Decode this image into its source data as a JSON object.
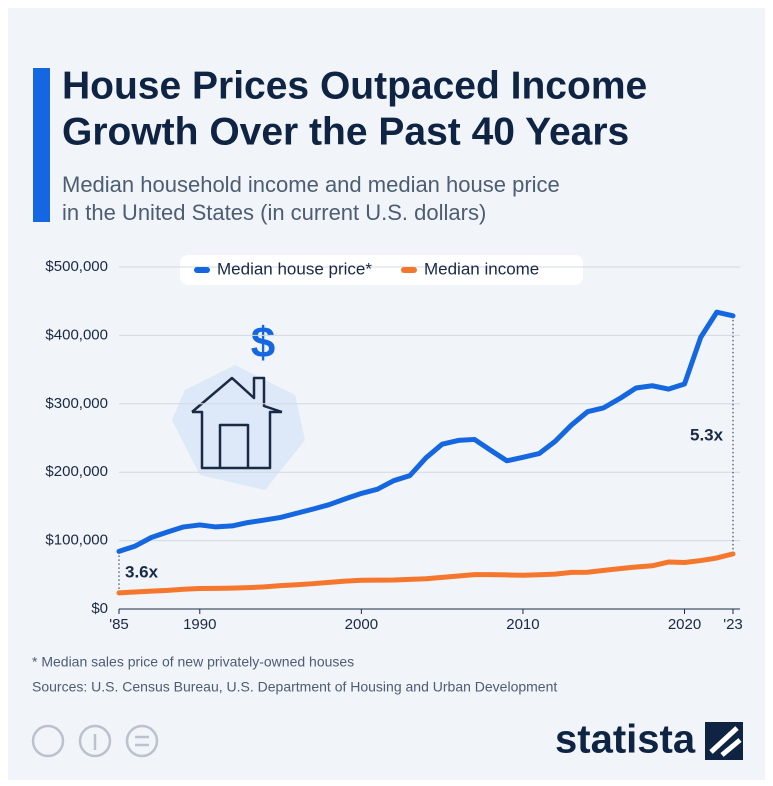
{
  "chart_data": {
    "type": "line",
    "title": [
      "House Prices Outpaced Income",
      "Growth Over the Past 40 Years"
    ],
    "subtitle": [
      "Median household income and median house price",
      "in the United States (in current U.S. dollars)"
    ],
    "x": [
      1985,
      1986,
      1987,
      1988,
      1989,
      1990,
      1991,
      1992,
      1993,
      1994,
      1995,
      1996,
      1997,
      1998,
      1999,
      2000,
      2001,
      2002,
      2003,
      2004,
      2005,
      2006,
      2007,
      2008,
      2009,
      2010,
      2011,
      2012,
      2013,
      2014,
      2015,
      2016,
      2017,
      2018,
      2019,
      2020,
      2021,
      2022,
      2023
    ],
    "series": [
      {
        "name": "Median house price*",
        "color": "#1467e0",
        "values": [
          84300,
          92000,
          104500,
          112500,
          120000,
          122900,
          120000,
          121500,
          126500,
          130000,
          133900,
          140000,
          146000,
          152500,
          161000,
          169000,
          175200,
          187600,
          195000,
          221000,
          240900,
          246500,
          247900,
          232100,
          216700,
          221800,
          227200,
          245200,
          268900,
          288500,
          294200,
          307800,
          323100,
          326400,
          321500,
          329000,
          397100,
          434000,
          428600
        ]
      },
      {
        "name": "Median income",
        "color": "#f5772d",
        "values": [
          23600,
          24900,
          26100,
          27200,
          28900,
          29900,
          30100,
          30600,
          31200,
          32300,
          34100,
          35500,
          37000,
          38900,
          40700,
          41990,
          42200,
          42400,
          43300,
          44300,
          46300,
          48200,
          50200,
          50300,
          49800,
          49300,
          50100,
          51000,
          53600,
          53700,
          56500,
          59000,
          61400,
          63200,
          68700,
          68000,
          70800,
          74600,
          80600
        ]
      }
    ],
    "xlim": [
      1985,
      2023
    ],
    "xticks": [
      {
        "value": 1985,
        "label": "'85"
      },
      1990,
      2000,
      2010,
      2020,
      {
        "value": 2023,
        "label": "'23"
      }
    ],
    "ylim": [
      0,
      500000
    ],
    "yticks": [
      {
        "value": 0,
        "label": "$0"
      },
      {
        "value": 100000,
        "label": "$100,000"
      },
      {
        "value": 200000,
        "label": "$200,000"
      },
      {
        "value": 300000,
        "label": "$300,000"
      },
      {
        "value": 400000,
        "label": "$400,000"
      },
      {
        "value": 500000,
        "label": "$500,000"
      }
    ],
    "grid": true,
    "annotations": [
      "3.6x",
      "5.3x"
    ],
    "footnote": "* Median sales price of new privately-owned houses",
    "source": "Sources: U.S. Census Bureau, U.S. Department of Housing and Urban Development",
    "brand": "statista"
  }
}
